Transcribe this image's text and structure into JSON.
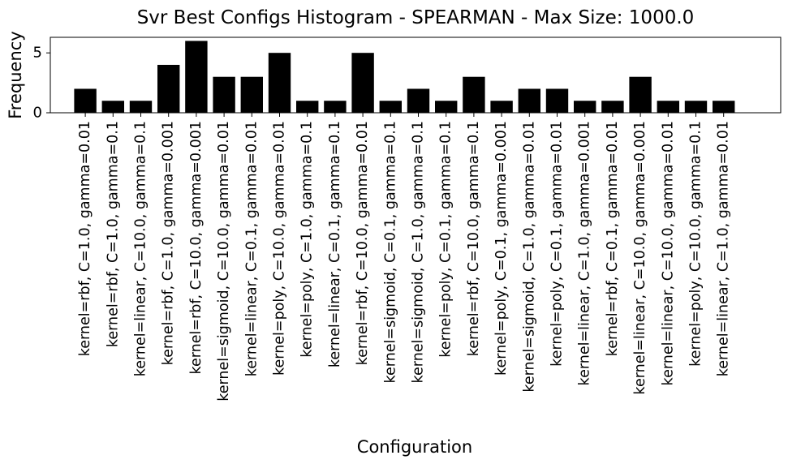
{
  "chart_data": {
    "type": "bar",
    "title": "Svr Best Configs Histogram - SPEARMAN - Max Size: 1000.0",
    "xlabel": "Configuration",
    "ylabel": "Frequency",
    "ylim": [
      0,
      6.3
    ],
    "yticks": [
      0,
      5
    ],
    "grid": false,
    "bar_color": "#000000",
    "categories": [
      "kernel=rbf, C=1.0, gamma=0.01",
      "kernel=rbf, C=1.0, gamma=0.1",
      "kernel=linear, C=10.0, gamma=0.1",
      "kernel=rbf, C=1.0, gamma=0.001",
      "kernel=rbf, C=10.0, gamma=0.001",
      "kernel=sigmoid, C=10.0, gamma=0.01",
      "kernel=linear, C=0.1, gamma=0.01",
      "kernel=poly, C=10.0, gamma=0.01",
      "kernel=poly, C=1.0, gamma=0.1",
      "kernel=linear, C=0.1, gamma=0.1",
      "kernel=rbf, C=10.0, gamma=0.01",
      "kernel=sigmoid, C=0.1, gamma=0.1",
      "kernel=sigmoid, C=1.0, gamma=0.1",
      "kernel=poly, C=0.1, gamma=0.1",
      "kernel=rbf, C=10.0, gamma=0.1",
      "kernel=poly, C=0.1, gamma=0.001",
      "kernel=sigmoid, C=1.0, gamma=0.01",
      "kernel=poly, C=0.1, gamma=0.01",
      "kernel=linear, C=1.0, gamma=0.001",
      "kernel=rbf, C=0.1, gamma=0.01",
      "kernel=linear, C=10.0, gamma=0.001",
      "kernel=linear, C=10.0, gamma=0.01",
      "kernel=poly, C=10.0, gamma=0.1",
      "kernel=linear, C=1.0, gamma=0.01"
    ],
    "values": [
      2,
      1,
      1,
      4,
      6,
      3,
      3,
      5,
      1,
      1,
      5,
      1,
      2,
      1,
      3,
      1,
      2,
      2,
      1,
      1,
      3,
      1,
      1,
      1
    ]
  }
}
